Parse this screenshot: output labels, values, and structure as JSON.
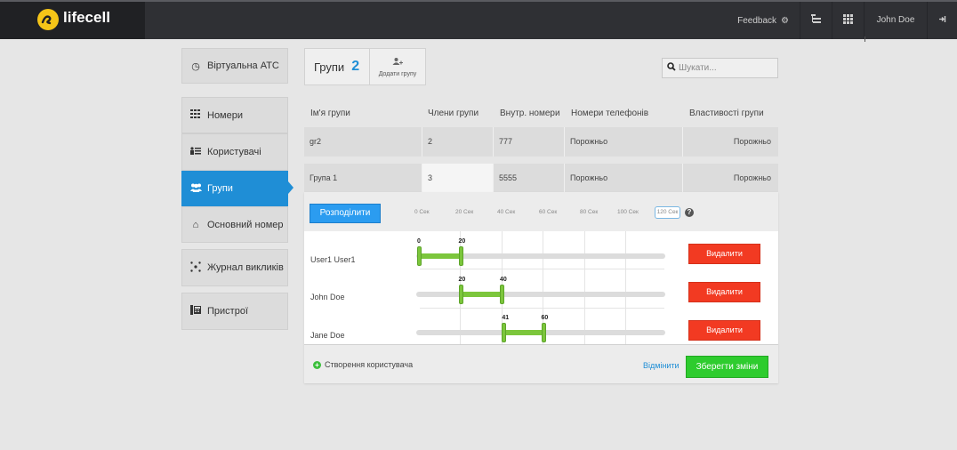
{
  "topbar": {
    "logo_text": "lifecell",
    "feedback_label": "Feedback",
    "user_name": "John Doe"
  },
  "sidebar": {
    "items": [
      {
        "label": "Віртуальна АТС",
        "icon": "clock-check-icon"
      },
      {
        "label": "Номери",
        "icon": "grid-icon"
      },
      {
        "label": "Користувачі",
        "icon": "users-list-icon"
      },
      {
        "label": "Групи",
        "icon": "group-icon",
        "active": true
      },
      {
        "label": "Основний номер",
        "icon": "home-icon"
      },
      {
        "label": "Журнал викликів",
        "icon": "call-log-icon"
      },
      {
        "label": "Пристрої",
        "icon": "devices-icon"
      }
    ]
  },
  "groups": {
    "title": "Групи",
    "count": "2",
    "add_label": "Додати групу"
  },
  "search": {
    "placeholder": "Шукати..."
  },
  "table": {
    "headers": [
      "Ім'я групи",
      "Члени групи",
      "Внутр. номери",
      "Номери телефонів",
      "Властивості групи"
    ],
    "rows": [
      {
        "name": "gr2",
        "members": "2",
        "ext": "777",
        "phones": "Порожньо",
        "props": "Порожньо"
      },
      {
        "name": "Група 1",
        "members": "3",
        "ext": "5555",
        "phones": "Порожньо",
        "props": "Порожньо"
      }
    ]
  },
  "panel": {
    "distribute_label": "Розподілити",
    "ticks": [
      "0 Сек",
      "20 Сек",
      "40 Сек",
      "60 Сек",
      "80 Сек",
      "100 Сек",
      "120 Сек"
    ],
    "max_seconds": 120,
    "members": [
      {
        "name": "User1 User1",
        "start": 0,
        "end": 20,
        "start_label": "0",
        "end_label": "20",
        "delete_label": "Видалити"
      },
      {
        "name": "John Doe",
        "start": 20,
        "end": 40,
        "start_label": "20",
        "end_label": "40",
        "delete_label": "Видалити"
      },
      {
        "name": "Jane Doe",
        "start": 41,
        "end": 60,
        "start_label": "41",
        "end_label": "60",
        "delete_label": "Видалити"
      }
    ],
    "create_user_label": "Створення користувача",
    "cancel_label": "Відмінити",
    "save_label": "Зберегти зміни"
  },
  "colors": {
    "accent": "#1f8ed6",
    "save": "#2ecc2e",
    "delete": "#f23a22",
    "timeline": "#7cc63c"
  }
}
